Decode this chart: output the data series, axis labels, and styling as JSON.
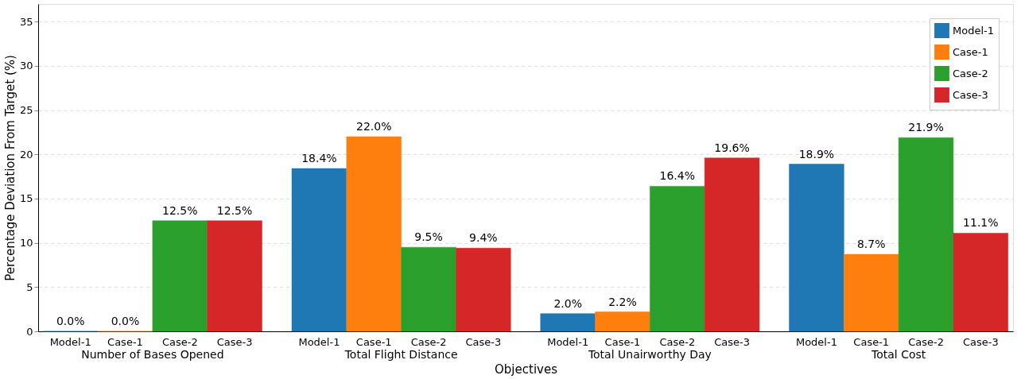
{
  "chart_data": {
    "type": "bar",
    "xlabel": "Objectives",
    "ylabel": "Percentage Deviation From Target (%)",
    "categories": [
      "Number of Bases Opened",
      "Total Flight Distance",
      "Total Unairworthy Day",
      "Total Cost"
    ],
    "series": [
      {
        "name": "Model-1",
        "color": "#1f77b4",
        "values": [
          0.0,
          18.4,
          2.0,
          18.9
        ],
        "value_labels": [
          "0.0%",
          "18.4%",
          "2.0%",
          "18.9%"
        ]
      },
      {
        "name": "Case-1",
        "color": "#ff7f0e",
        "values": [
          0.0,
          22.0,
          2.2,
          8.7
        ],
        "value_labels": [
          "0.0%",
          "22.0%",
          "2.2%",
          "8.7%"
        ]
      },
      {
        "name": "Case-2",
        "color": "#2ca02c",
        "values": [
          12.5,
          9.5,
          16.4,
          21.9
        ],
        "value_labels": [
          "12.5%",
          "9.5%",
          "16.4%",
          "21.9%"
        ]
      },
      {
        "name": "Case-3",
        "color": "#d62728",
        "values": [
          12.5,
          9.4,
          19.6,
          11.1
        ],
        "value_labels": [
          "12.5%",
          "9.4%",
          "19.6%",
          "11.1%"
        ]
      }
    ],
    "ylim": [
      0,
      37
    ],
    "yticks": [
      0,
      5,
      10,
      15,
      20,
      25,
      30,
      35
    ],
    "grid": "y",
    "legend": "top right"
  }
}
